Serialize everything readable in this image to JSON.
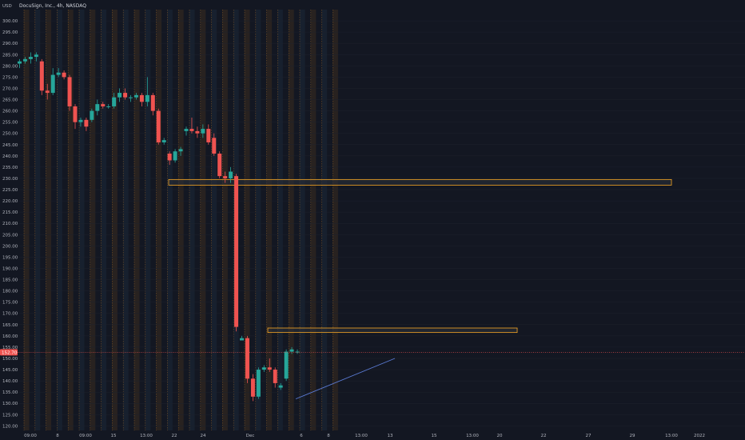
{
  "header": {
    "title": "DocuSign, Inc., 4h, NASDAQ",
    "currency": "USD"
  },
  "colors": {
    "background": "#131722",
    "up": "#26a69a",
    "down": "#ef5350",
    "zone_border": "#f5a623",
    "zone_fill": "#2a2e39",
    "trendline": "#5b7bd5",
    "orange_band": "#3a2c1f",
    "blue_band": "#1c2838",
    "price_badge": "#ef5350"
  },
  "chart_data": {
    "type": "candlestick",
    "title": "DocuSign, Inc., 4h, NASDAQ",
    "y_axis": {
      "min": 118,
      "max": 305,
      "ticks": [
        120,
        125,
        130,
        135,
        140,
        145,
        150,
        155,
        160,
        165,
        170,
        175,
        180,
        185,
        190,
        195,
        200,
        205,
        210,
        215,
        220,
        225,
        230,
        235,
        240,
        245,
        250,
        255,
        260,
        265,
        270,
        275,
        280,
        285,
        290,
        295,
        300
      ]
    },
    "x_axis": {
      "labels": [
        "09:00",
        "8",
        "09:00",
        "15",
        "13:00",
        "22",
        "24",
        "Dec",
        "6",
        "8",
        "13:00",
        "13",
        "15",
        "13:00",
        "20",
        "22",
        "27",
        "29",
        "13:00",
        "2022"
      ]
    },
    "current_price": {
      "value": 152.7,
      "label": "152.70"
    },
    "candles": [
      {
        "o": 281,
        "h": 283,
        "l": 279,
        "c": 282
      },
      {
        "o": 282,
        "h": 284,
        "l": 281,
        "c": 283
      },
      {
        "o": 283,
        "h": 286,
        "l": 281,
        "c": 284
      },
      {
        "o": 284,
        "h": 286,
        "l": 282,
        "c": 285
      },
      {
        "o": 282,
        "h": 283,
        "l": 267,
        "c": 269
      },
      {
        "o": 269,
        "h": 272,
        "l": 265,
        "c": 268
      },
      {
        "o": 268,
        "h": 279,
        "l": 267,
        "c": 276
      },
      {
        "o": 276,
        "h": 279,
        "l": 275,
        "c": 277
      },
      {
        "o": 277,
        "h": 278,
        "l": 274,
        "c": 275
      },
      {
        "o": 275,
        "h": 276,
        "l": 260,
        "c": 262
      },
      {
        "o": 262,
        "h": 263,
        "l": 252,
        "c": 255
      },
      {
        "o": 255,
        "h": 257,
        "l": 253,
        "c": 256
      },
      {
        "o": 256,
        "h": 257,
        "l": 251,
        "c": 253
      },
      {
        "o": 256,
        "h": 261,
        "l": 255,
        "c": 260
      },
      {
        "o": 260,
        "h": 265,
        "l": 258,
        "c": 263
      },
      {
        "o": 263,
        "h": 264,
        "l": 261,
        "c": 262
      },
      {
        "o": 262,
        "h": 263,
        "l": 261,
        "c": 262
      },
      {
        "o": 262,
        "h": 268,
        "l": 261,
        "c": 266
      },
      {
        "o": 266,
        "h": 270,
        "l": 264,
        "c": 268
      },
      {
        "o": 268,
        "h": 270,
        "l": 265,
        "c": 266
      },
      {
        "o": 266,
        "h": 267,
        "l": 264,
        "c": 266
      },
      {
        "o": 266,
        "h": 268,
        "l": 265,
        "c": 267
      },
      {
        "o": 267,
        "h": 268,
        "l": 262,
        "c": 264
      },
      {
        "o": 264,
        "h": 275,
        "l": 262,
        "c": 267
      },
      {
        "o": 267,
        "h": 268,
        "l": 258,
        "c": 260
      },
      {
        "o": 260,
        "h": 261,
        "l": 245,
        "c": 246
      },
      {
        "o": 246,
        "h": 248,
        "l": 245,
        "c": 247
      },
      {
        "o": 241,
        "h": 242,
        "l": 236,
        "c": 238
      },
      {
        "o": 238,
        "h": 243,
        "l": 237,
        "c": 242
      },
      {
        "o": 242,
        "h": 244,
        "l": 240,
        "c": 243
      },
      {
        "o": 251,
        "h": 253,
        "l": 249,
        "c": 252
      },
      {
        "o": 252,
        "h": 257,
        "l": 250,
        "c": 251
      },
      {
        "o": 251,
        "h": 253,
        "l": 248,
        "c": 250
      },
      {
        "o": 250,
        "h": 254,
        "l": 248,
        "c": 252
      },
      {
        "o": 252,
        "h": 254,
        "l": 245,
        "c": 246
      },
      {
        "o": 248,
        "h": 250,
        "l": 240,
        "c": 241
      },
      {
        "o": 241,
        "h": 242,
        "l": 230,
        "c": 231
      },
      {
        "o": 231,
        "h": 233,
        "l": 228,
        "c": 230
      },
      {
        "o": 230,
        "h": 235,
        "l": 228,
        "c": 233
      },
      {
        "o": 231,
        "h": 232,
        "l": 162,
        "c": 164
      },
      {
        "o": 158,
        "h": 160,
        "l": 158,
        "c": 159
      },
      {
        "o": 159,
        "h": 160,
        "l": 139,
        "c": 141
      },
      {
        "o": 141,
        "h": 143,
        "l": 131,
        "c": 133
      },
      {
        "o": 133,
        "h": 146,
        "l": 132,
        "c": 145
      },
      {
        "o": 145,
        "h": 147,
        "l": 144,
        "c": 146
      },
      {
        "o": 146,
        "h": 150,
        "l": 144,
        "c": 145
      },
      {
        "o": 145,
        "h": 146,
        "l": 137,
        "c": 139
      },
      {
        "o": 137,
        "h": 139,
        "l": 136,
        "c": 138
      },
      {
        "o": 141,
        "h": 154,
        "l": 140,
        "c": 153
      },
      {
        "o": 153,
        "h": 155,
        "l": 152,
        "c": 154
      },
      {
        "o": 153,
        "h": 154,
        "l": 152,
        "c": 153
      }
    ],
    "zones": [
      {
        "name": "upper-zone",
        "top": 229.5,
        "bottom": 227
      },
      {
        "name": "lower-zone",
        "top": 163.5,
        "bottom": 161.5
      }
    ],
    "trendline": {
      "from_price": 132,
      "to_price": 150
    }
  }
}
